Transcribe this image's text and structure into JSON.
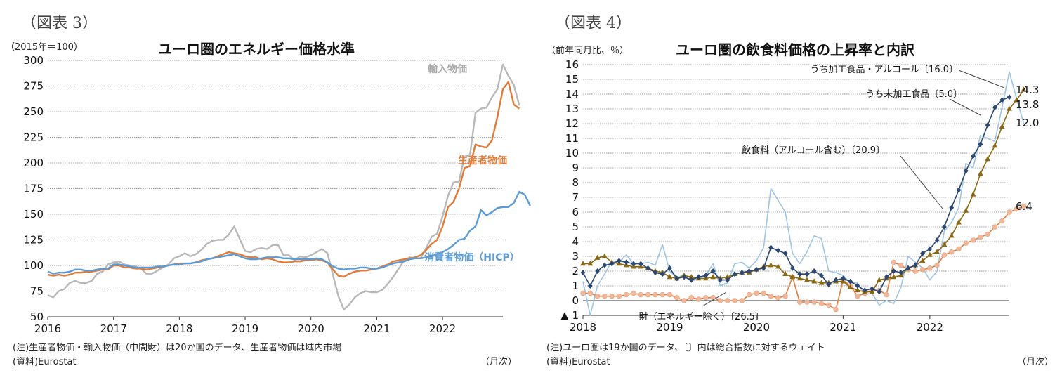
{
  "charts": [
    {
      "figure_label": "（図表 3）",
      "unit": "（2015年＝100）",
      "note": "(注)生産者物価・輸入物価（中間財）は20か国のデータ、生産者物価は域内市場",
      "source": "(資料)Eurostat",
      "month_label": "（月次）",
      "chart_data": {
        "type": "line",
        "title": "ユーロ圏のエネルギー価格水準",
        "ylim": [
          50,
          300
        ],
        "yticks": [
          50,
          75,
          100,
          125,
          150,
          175,
          200,
          225,
          250,
          275,
          300
        ],
        "x_start": 2016,
        "x_end": 2022.9167,
        "xticks": [
          2016,
          2017,
          2018,
          2019,
          2020,
          2021,
          2022
        ],
        "grid": true,
        "series": [
          {
            "name": "輸入物価",
            "color": "#b8b8b8",
            "label": "輸入物価",
            "label_color": "#a8a8a8",
            "values": [
              71,
              69,
              75,
              77,
              83,
              85,
              83,
              83,
              85,
              92,
              94,
              101,
              103,
              104,
              101,
              100,
              99,
              97,
              92,
              92,
              95,
              98,
              101,
              107,
              109,
              112,
              109,
              111,
              115,
              121,
              124,
              125,
              125,
              130,
              138,
              126,
              114,
              113,
              116,
              117,
              116,
              120,
              120,
              110,
              110,
              105,
              109,
              108,
              110,
              113,
              116,
              112,
              91,
              70,
              57,
              62,
              69,
              73,
              75,
              74,
              74,
              76,
              82,
              89,
              97,
              105,
              108,
              107,
              107,
              117,
              128,
              131,
              148,
              168,
              181,
              182,
              206,
              208,
              249,
              253,
              254,
              264,
              272,
              296,
              285,
              276,
              256
            ]
          },
          {
            "name": "生産者物価",
            "color": "#e07b39",
            "label": "生産者物価",
            "label_color": "#e07b39",
            "values": [
              91,
              90,
              91,
              90,
              91,
              93,
              93,
              94,
              94,
              95,
              96,
              96,
              100,
              100,
              98,
              98,
              97,
              97,
              96,
              97,
              98,
              99,
              100,
              101,
              102,
              102,
              102,
              103,
              105,
              106,
              107,
              109,
              111,
              113,
              112,
              111,
              109,
              108,
              108,
              106,
              107,
              106,
              104,
              103,
              103,
              104,
              104,
              105,
              105,
              106,
              105,
              103,
              96,
              90,
              89,
              92,
              94,
              95,
              95,
              96,
              97,
              99,
              101,
              104,
              105,
              106,
              107,
              108,
              110,
              115,
              121,
              125,
              138,
              157,
              162,
              175,
              195,
              197,
              218,
              216,
              215,
              222,
              245,
              272,
              279,
              257,
              253
            ]
          },
          {
            "name": "消費者物価（HICP）",
            "color": "#5b9bd5",
            "label": "消費者物価（HICP）",
            "label_color": "#5b9bd5",
            "values": [
              94,
              92,
              93,
              93,
              94,
              96,
              96,
              95,
              95,
              96,
              97,
              97,
              101,
              101,
              100,
              99,
              98,
              98,
              98,
              98,
              99,
              99,
              100,
              101,
              101,
              102,
              102,
              103,
              104,
              106,
              107,
              108,
              109,
              110,
              111,
              109,
              107,
              106,
              106,
              107,
              108,
              108,
              108,
              107,
              107,
              106,
              106,
              106,
              106,
              107,
              106,
              103,
              99,
              97,
              96,
              97,
              97,
              98,
              98,
              97,
              97,
              98,
              100,
              102,
              103,
              104,
              106,
              107,
              107,
              108,
              109,
              111,
              113,
              116,
              120,
              125,
              126,
              134,
              138,
              154,
              149,
              152,
              156,
              157,
              157,
              161,
              172,
              169,
              158
            ]
          }
        ]
      }
    },
    {
      "figure_label": "（図表 4）",
      "unit": "（前年同月比、％）",
      "note": "(注)ユーロ圏は19か国のデータ、〔〕内は総合指数に対するウェイト",
      "source": "(資料)Eurostat",
      "month_label": "（月次）",
      "chart_data": {
        "type": "line",
        "title": "ユーロ圏の飲食料価格の上昇率と内訳",
        "ylim": [
          -1,
          16
        ],
        "yticks": [
          -1,
          0,
          1,
          2,
          3,
          4,
          5,
          6,
          7,
          8,
          9,
          10,
          11,
          12,
          13,
          14,
          15,
          16
        ],
        "ytick_labels": [
          "▲ 1",
          "0",
          "1",
          "2",
          "3",
          "4",
          "5",
          "6",
          "7",
          "8",
          "9",
          "10",
          "11",
          "12",
          "13",
          "14",
          "15",
          "16"
        ],
        "x_start": 2018,
        "x_end": 2022.9167,
        "xticks": [
          2018,
          2019,
          2020,
          2021,
          2022
        ],
        "grid": true,
        "series": [
          {
            "name": "うち未加工食品〔5.0〕",
            "color": "#9ec4e4",
            "marker": "none",
            "values": [
              1.3,
              -1.0,
              1.0,
              1.8,
              2.7,
              2.6,
              3.1,
              2.5,
              2.5,
              2.6,
              2.4,
              3.8,
              2.0,
              1.5,
              1.8,
              1.3,
              1.5,
              1.7,
              2.5,
              1.0,
              1.2,
              2.5,
              2.6,
              2.2,
              2.7,
              3.6,
              7.6,
              6.8,
              6.0,
              3.2,
              2.5,
              3.3,
              4.4,
              4.2,
              2.0,
              1.9,
              1.7,
              1.2,
              1.2,
              0.4,
              0.5,
              -0.3,
              0.0,
              -0.2,
              0.9,
              3.0,
              2.6,
              2.2,
              1.4,
              2.0,
              4.7,
              5.3,
              6.3,
              9.3,
              9.0,
              11.2,
              11.0,
              10.8,
              13.1,
              15.5,
              13.7,
              12.0
            ]
          },
          {
            "name": "財（エネルギー除く）〔26.5〕",
            "color": "#f0b89a",
            "marker": "circle",
            "marker_color": "#f0b89a",
            "line_color": "#e07b39",
            "values": [
              0.5,
              0.5,
              0.3,
              0.3,
              0.3,
              0.3,
              0.4,
              0.5,
              0.4,
              0.4,
              0.4,
              0.4,
              0.4,
              0.2,
              0.0,
              0.2,
              0.1,
              0.2,
              0.2,
              0.0,
              0.0,
              0.0,
              0.0,
              0.4,
              0.5,
              0.5,
              0.3,
              0.2,
              0.3,
              1.6,
              -0.1,
              -0.1,
              -0.1,
              -0.2,
              -0.3,
              -0.6,
              1.4,
              1.0,
              0.3,
              0.5,
              0.7,
              0.7,
              0.4,
              2.6,
              2.4,
              2.1,
              2.0,
              2.1,
              2.2,
              2.4,
              3.1,
              3.3,
              3.5,
              3.9,
              4.1,
              4.3,
              4.5,
              5.0,
              5.4,
              6.0,
              6.2,
              6.4
            ]
          },
          {
            "name": "うち加工食品・アルコール〔16.0〕",
            "color": "#8b6914",
            "marker": "triangle",
            "marker_color": "#8b6914",
            "values": [
              2.5,
              2.5,
              2.9,
              3.0,
              2.6,
              2.5,
              2.4,
              2.3,
              2.3,
              2.2,
              2.0,
              1.9,
              1.6,
              1.5,
              1.7,
              1.6,
              1.5,
              1.5,
              1.6,
              1.5,
              1.6,
              1.8,
              1.9,
              1.9,
              2.1,
              2.3,
              2.4,
              2.3,
              1.8,
              1.6,
              1.5,
              1.4,
              1.3,
              1.2,
              1.2,
              1.3,
              1.3,
              0.9,
              0.7,
              0.6,
              0.6,
              1.4,
              1.5,
              1.6,
              1.7,
              2.2,
              2.4,
              2.7,
              3.1,
              3.3,
              3.8,
              4.4,
              5.3,
              6.1,
              7.2,
              8.6,
              9.6,
              10.5,
              11.8,
              13.0,
              13.6,
              14.3
            ]
          },
          {
            "name": "飲食料（アルコール含む）〔20.9〕",
            "color": "#2c4770",
            "marker": "diamond",
            "marker_color": "#2c4770",
            "values": [
              1.9,
              1.0,
              2.0,
              2.4,
              2.5,
              2.7,
              2.6,
              2.5,
              2.5,
              2.2,
              1.9,
              1.8,
              2.2,
              1.5,
              1.6,
              1.4,
              1.6,
              1.7,
              2.0,
              1.4,
              1.4,
              1.8,
              1.9,
              2.0,
              2.1,
              2.2,
              3.6,
              3.4,
              3.2,
              2.2,
              1.8,
              1.8,
              2.0,
              1.7,
              1.1,
              1.4,
              1.5,
              1.3,
              1.0,
              0.7,
              0.8,
              0.6,
              1.6,
              2.0,
              1.9,
              2.2,
              2.4,
              3.2,
              3.5,
              4.1,
              5.0,
              6.3,
              7.5,
              8.8,
              9.8,
              10.6,
              11.9,
              13.1,
              13.6,
              13.8
            ]
          }
        ],
        "annotations": [
          {
            "text": "うち加工食品・アルコール〔16.0〕"
          },
          {
            "text": "うち未加工食品〔5.0〕"
          },
          {
            "text": "飲食料（アルコール含む）〔20.9〕"
          },
          {
            "text": "財（エネルギー除く）〔26.5〕"
          }
        ],
        "end_labels": [
          "14.3",
          "13.8",
          "12.0",
          "6.4"
        ]
      }
    }
  ]
}
